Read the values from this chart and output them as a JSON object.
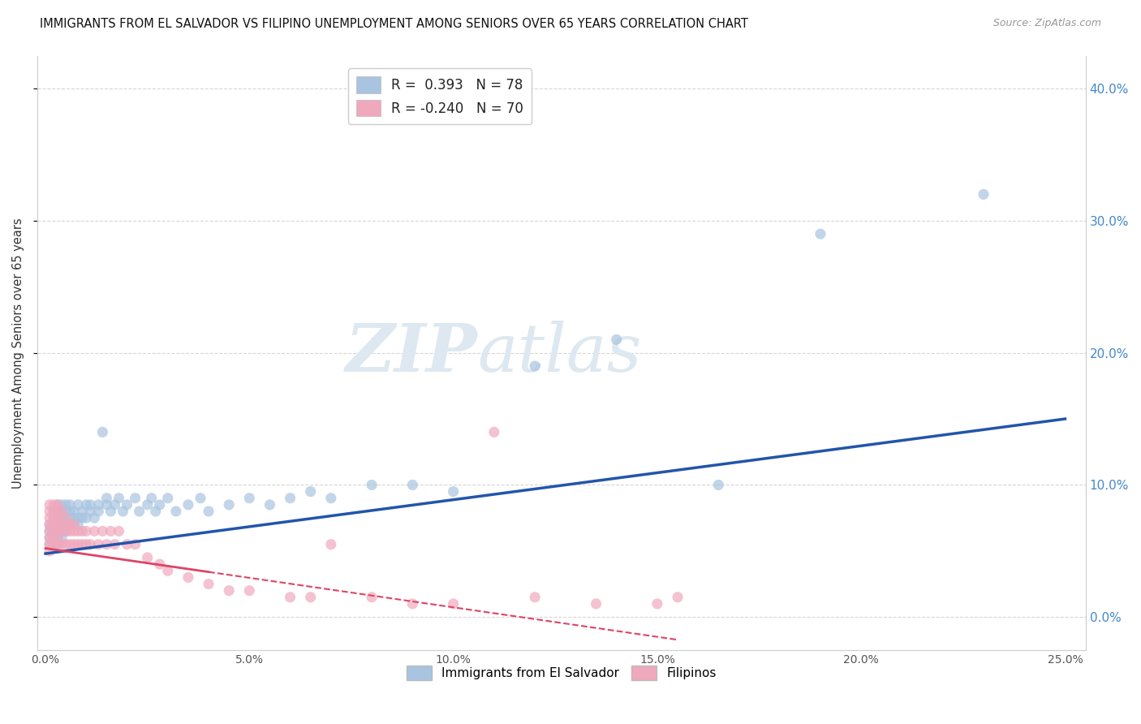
{
  "title": "IMMIGRANTS FROM EL SALVADOR VS FILIPINO UNEMPLOYMENT AMONG SENIORS OVER 65 YEARS CORRELATION CHART",
  "source": "Source: ZipAtlas.com",
  "ylabel": "Unemployment Among Seniors over 65 years",
  "xlim": [
    0.0,
    0.255
  ],
  "ylim": [
    -0.025,
    0.425
  ],
  "legend_blue_r": "0.393",
  "legend_blue_n": "78",
  "legend_pink_r": "-0.240",
  "legend_pink_n": "70",
  "blue_color": "#a8c4e0",
  "pink_color": "#f0a8bc",
  "blue_line_color": "#2255aa",
  "pink_line_color": "#dd4466",
  "watermark_color": "#dde8f0",
  "blue_line_y0": 0.048,
  "blue_line_y1": 0.15,
  "pink_line_y0": 0.052,
  "pink_line_y1": -0.015,
  "pink_line_x1": 0.15,
  "blue_x": [
    0.001,
    0.001,
    0.001,
    0.001,
    0.002,
    0.002,
    0.002,
    0.002,
    0.002,
    0.002,
    0.003,
    0.003,
    0.003,
    0.003,
    0.003,
    0.003,
    0.003,
    0.004,
    0.004,
    0.004,
    0.004,
    0.004,
    0.005,
    0.005,
    0.005,
    0.005,
    0.006,
    0.006,
    0.006,
    0.006,
    0.007,
    0.007,
    0.007,
    0.008,
    0.008,
    0.008,
    0.009,
    0.009,
    0.01,
    0.01,
    0.011,
    0.011,
    0.012,
    0.013,
    0.013,
    0.014,
    0.015,
    0.015,
    0.016,
    0.017,
    0.018,
    0.019,
    0.02,
    0.022,
    0.023,
    0.025,
    0.026,
    0.027,
    0.028,
    0.03,
    0.032,
    0.035,
    0.038,
    0.04,
    0.045,
    0.05,
    0.055,
    0.06,
    0.065,
    0.07,
    0.08,
    0.09,
    0.1,
    0.12,
    0.14,
    0.165,
    0.19,
    0.23
  ],
  "blue_y": [
    0.055,
    0.065,
    0.06,
    0.07,
    0.055,
    0.065,
    0.06,
    0.07,
    0.075,
    0.08,
    0.055,
    0.065,
    0.06,
    0.07,
    0.075,
    0.08,
    0.085,
    0.06,
    0.07,
    0.075,
    0.08,
    0.085,
    0.065,
    0.075,
    0.08,
    0.085,
    0.07,
    0.075,
    0.08,
    0.085,
    0.07,
    0.075,
    0.08,
    0.07,
    0.075,
    0.085,
    0.075,
    0.08,
    0.075,
    0.085,
    0.08,
    0.085,
    0.075,
    0.08,
    0.085,
    0.14,
    0.085,
    0.09,
    0.08,
    0.085,
    0.09,
    0.08,
    0.085,
    0.09,
    0.08,
    0.085,
    0.09,
    0.08,
    0.085,
    0.09,
    0.08,
    0.085,
    0.09,
    0.08,
    0.085,
    0.09,
    0.085,
    0.09,
    0.095,
    0.09,
    0.1,
    0.1,
    0.095,
    0.19,
    0.21,
    0.1,
    0.29,
    0.32
  ],
  "pink_x": [
    0.001,
    0.001,
    0.001,
    0.001,
    0.001,
    0.001,
    0.001,
    0.001,
    0.002,
    0.002,
    0.002,
    0.002,
    0.002,
    0.002,
    0.002,
    0.003,
    0.003,
    0.003,
    0.003,
    0.003,
    0.003,
    0.003,
    0.004,
    0.004,
    0.004,
    0.004,
    0.005,
    0.005,
    0.005,
    0.005,
    0.006,
    0.006,
    0.006,
    0.007,
    0.007,
    0.007,
    0.008,
    0.008,
    0.009,
    0.009,
    0.01,
    0.01,
    0.011,
    0.012,
    0.013,
    0.014,
    0.015,
    0.016,
    0.017,
    0.018,
    0.02,
    0.022,
    0.025,
    0.028,
    0.03,
    0.035,
    0.04,
    0.045,
    0.05,
    0.06,
    0.065,
    0.07,
    0.08,
    0.09,
    0.1,
    0.11,
    0.12,
    0.135,
    0.15,
    0.155
  ],
  "pink_y": [
    0.055,
    0.065,
    0.07,
    0.075,
    0.06,
    0.08,
    0.085,
    0.05,
    0.055,
    0.065,
    0.07,
    0.075,
    0.06,
    0.08,
    0.085,
    0.055,
    0.065,
    0.07,
    0.075,
    0.06,
    0.08,
    0.085,
    0.055,
    0.065,
    0.07,
    0.08,
    0.055,
    0.065,
    0.07,
    0.075,
    0.055,
    0.065,
    0.07,
    0.055,
    0.065,
    0.07,
    0.055,
    0.065,
    0.055,
    0.065,
    0.055,
    0.065,
    0.055,
    0.065,
    0.055,
    0.065,
    0.055,
    0.065,
    0.055,
    0.065,
    0.055,
    0.055,
    0.045,
    0.04,
    0.035,
    0.03,
    0.025,
    0.02,
    0.02,
    0.015,
    0.015,
    0.055,
    0.015,
    0.01,
    0.01,
    0.14,
    0.015,
    0.01,
    0.01,
    0.015
  ],
  "grid_color": "#cccccc",
  "spine_color": "#cccccc",
  "right_tick_color": "#4488cc",
  "xticks": [
    0.0,
    0.05,
    0.1,
    0.15,
    0.2,
    0.25
  ],
  "yticks": [
    0.0,
    0.1,
    0.2,
    0.3,
    0.4
  ]
}
